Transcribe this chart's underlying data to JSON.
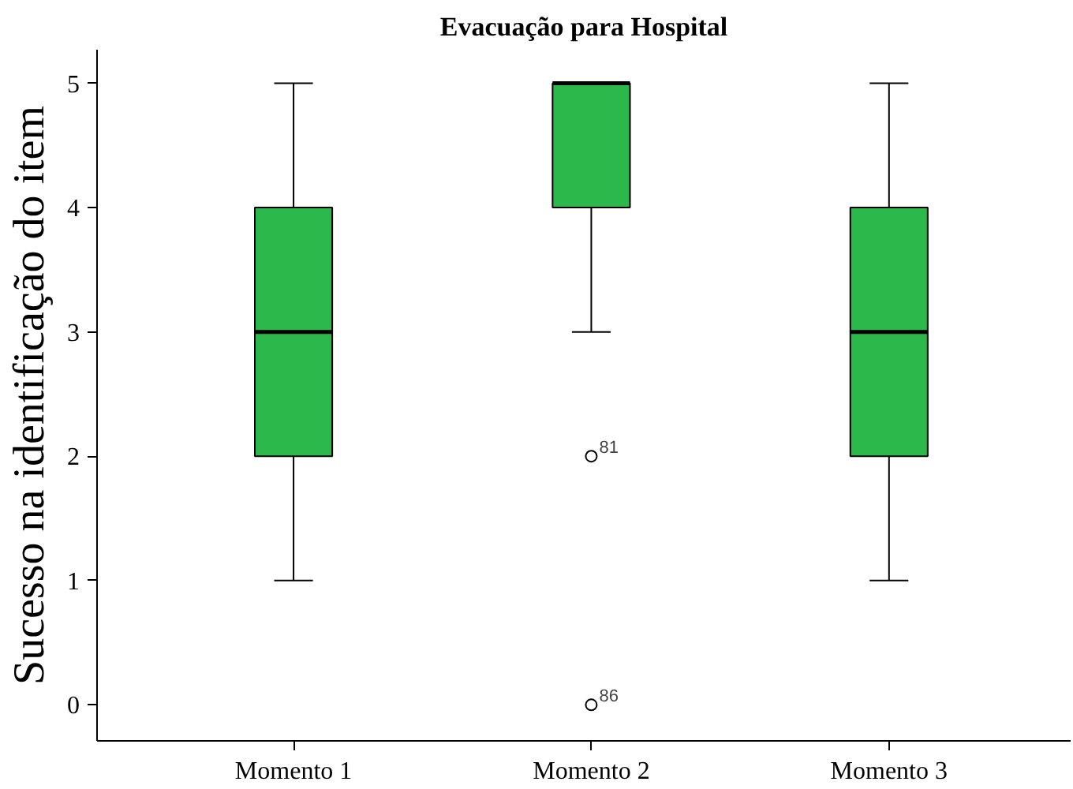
{
  "chart_data": {
    "type": "box",
    "title": "Evacuação para Hospital",
    "ylabel": "Sucesso na identificação do item",
    "categories": [
      "Momento 1",
      "Momento 2",
      "Momento 3"
    ],
    "series": [
      {
        "color": "#2db84b",
        "boxes": [
          {
            "low": 1,
            "q1": 2,
            "median": 3,
            "q3": 4,
            "high": 5
          },
          {
            "low": 3,
            "q1": 4,
            "median": 5,
            "q3": 5,
            "high": 5,
            "outliers": [
              2,
              0
            ]
          },
          {
            "low": 1,
            "q1": 2,
            "median": 3,
            "q3": 4,
            "high": 5
          }
        ]
      }
    ],
    "ylim": [
      -0.29,
      5.27
    ],
    "yticks": [
      0,
      1,
      2,
      3,
      4,
      5
    ],
    "grid": false,
    "annotations": [
      "81",
      "86"
    ]
  }
}
